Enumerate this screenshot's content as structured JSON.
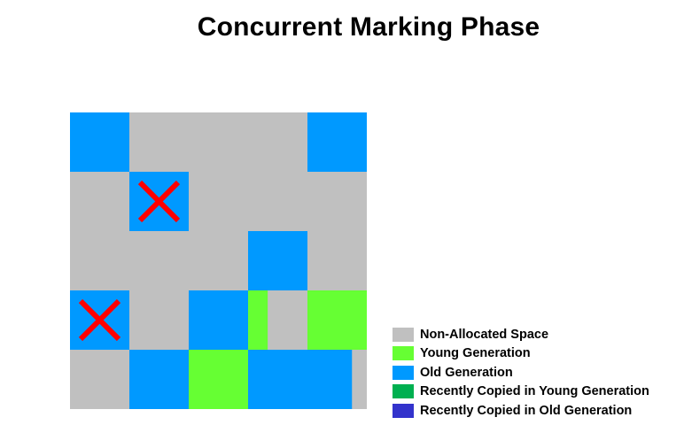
{
  "title": "Concurrent Marking Phase",
  "colors": {
    "non_allocated": "#c0c0c0",
    "young": "#66ff33",
    "old": "#0099ff",
    "recent_young": "#00b050",
    "recent_old": "#3333cc",
    "mark_x": "#ff0000"
  },
  "legend": [
    {
      "label": "Non-Allocated Space",
      "color": "#c0c0c0"
    },
    {
      "label": "Young Generation",
      "color": "#66ff33"
    },
    {
      "label": "Old Generation",
      "color": "#0099ff"
    },
    {
      "label": "Recently Copied in Young Generation",
      "color": "#00b050"
    },
    {
      "label": "Recently Copied in Old Generation",
      "color": "#3333cc"
    }
  ],
  "regions": [
    {
      "row": 0,
      "col": 0,
      "span": 1,
      "type": "old",
      "marked": false
    },
    {
      "row": 0,
      "col": 4,
      "span": 1,
      "type": "old",
      "marked": false
    },
    {
      "row": 1,
      "col": 1,
      "span": 1,
      "type": "old",
      "marked": true
    },
    {
      "row": 2,
      "col": 3,
      "span": 1,
      "type": "old",
      "marked": false
    },
    {
      "row": 3,
      "col": 0,
      "span": 1,
      "type": "old",
      "marked": true
    },
    {
      "row": 3,
      "col": 2,
      "span": 1,
      "type": "old",
      "marked": false
    },
    {
      "row": 3,
      "col": 3,
      "span": 0.33,
      "type": "young",
      "marked": false
    },
    {
      "row": 3,
      "col": 4,
      "span": 1,
      "type": "young",
      "marked": false
    },
    {
      "row": 4,
      "col": 1,
      "span": 1,
      "type": "old",
      "marked": false
    },
    {
      "row": 4,
      "col": 2,
      "span": 1,
      "type": "young",
      "marked": false
    },
    {
      "row": 4,
      "col": 3,
      "span": 1.75,
      "type": "old",
      "marked": false
    }
  ]
}
